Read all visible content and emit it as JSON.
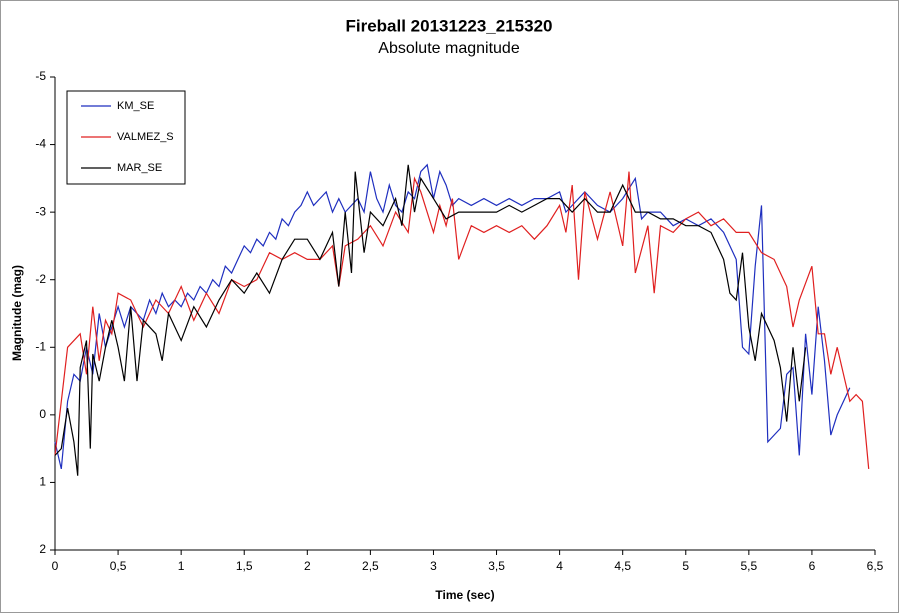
{
  "chart_data": {
    "type": "line",
    "title": "Fireball 20131223_215320",
    "subtitle": "Absolute magnitude",
    "x_label": "Time (sec)",
    "y_label": "Magnitude (mag)",
    "xlim": [
      0,
      6.5
    ],
    "xticks": [
      0,
      {
        "value": 0.5,
        "label": "0,5"
      },
      1,
      {
        "value": 1.5,
        "label": "1,5"
      },
      2,
      {
        "value": 2.5,
        "label": "2,5"
      },
      3,
      {
        "value": 3.5,
        "label": "3,5"
      },
      4,
      {
        "value": 4.5,
        "label": "4,5"
      },
      5,
      {
        "value": 5.5,
        "label": "5,5"
      },
      6,
      {
        "value": 6.5,
        "label": "6,5"
      }
    ],
    "ylim": [
      2,
      -5
    ],
    "yticks": [
      -5,
      -4,
      -3,
      -2,
      -1,
      0,
      1,
      2
    ],
    "legend": "top-left",
    "series": [
      {
        "name": "KM_SE",
        "color": "#1f2fbf",
        "x": [
          0,
          0.05,
          0.1,
          0.15,
          0.2,
          0.25,
          0.3,
          0.35,
          0.4,
          0.45,
          0.5,
          0.55,
          0.6,
          0.65,
          0.7,
          0.75,
          0.8,
          0.85,
          0.9,
          0.95,
          1.0,
          1.05,
          1.1,
          1.15,
          1.2,
          1.25,
          1.3,
          1.35,
          1.4,
          1.45,
          1.5,
          1.55,
          1.6,
          1.65,
          1.7,
          1.75,
          1.8,
          1.85,
          1.9,
          1.95,
          2.0,
          2.05,
          2.1,
          2.15,
          2.2,
          2.25,
          2.3,
          2.35,
          2.4,
          2.45,
          2.5,
          2.55,
          2.6,
          2.65,
          2.7,
          2.75,
          2.8,
          2.85,
          2.9,
          2.95,
          3.0,
          3.05,
          3.1,
          3.15,
          3.2,
          3.3,
          3.4,
          3.5,
          3.6,
          3.7,
          3.8,
          3.9,
          4.0,
          4.05,
          4.1,
          4.2,
          4.3,
          4.4,
          4.5,
          4.6,
          4.65,
          4.7,
          4.8,
          4.9,
          5.0,
          5.1,
          5.2,
          5.3,
          5.4,
          5.45,
          5.5,
          5.55,
          5.6,
          5.65,
          5.7,
          5.75,
          5.8,
          5.85,
          5.9,
          5.95,
          6.0,
          6.05,
          6.1,
          6.15,
          6.2,
          6.3
        ],
        "values": [
          0.4,
          0.8,
          -0.2,
          -0.6,
          -0.5,
          -1.0,
          -0.6,
          -1.5,
          -1.0,
          -1.3,
          -1.6,
          -1.3,
          -1.6,
          -1.5,
          -1.4,
          -1.7,
          -1.5,
          -1.8,
          -1.6,
          -1.7,
          -1.6,
          -1.8,
          -1.7,
          -1.9,
          -1.8,
          -2.0,
          -1.9,
          -2.2,
          -2.1,
          -2.3,
          -2.5,
          -2.4,
          -2.6,
          -2.5,
          -2.7,
          -2.6,
          -2.9,
          -2.8,
          -3.0,
          -3.1,
          -3.3,
          -3.1,
          -3.2,
          -3.3,
          -3.0,
          -3.2,
          -3.0,
          -3.1,
          -3.2,
          -3.0,
          -3.6,
          -3.2,
          -3.0,
          -3.4,
          -3.1,
          -3.0,
          -3.3,
          -3.2,
          -3.6,
          -3.7,
          -3.2,
          -3.6,
          -3.4,
          -3.1,
          -3.2,
          -3.1,
          -3.2,
          -3.1,
          -3.2,
          -3.1,
          -3.2,
          -3.2,
          -3.3,
          -3.0,
          -3.1,
          -3.3,
          -3.1,
          -3.0,
          -3.2,
          -3.5,
          -2.9,
          -3.0,
          -3.0,
          -2.8,
          -2.9,
          -2.8,
          -2.9,
          -2.7,
          -2.3,
          -1.0,
          -0.9,
          -2.2,
          -3.1,
          0.4,
          0.3,
          0.2,
          -0.6,
          -0.7,
          0.6,
          -1.2,
          -0.3,
          -1.6,
          -0.8,
          0.3,
          0.0,
          -0.4
        ]
      },
      {
        "name": "VALMEZ_S",
        "color": "#e02020",
        "x": [
          0,
          0.1,
          0.2,
          0.25,
          0.3,
          0.35,
          0.4,
          0.45,
          0.5,
          0.6,
          0.7,
          0.8,
          0.9,
          1.0,
          1.1,
          1.2,
          1.3,
          1.4,
          1.5,
          1.6,
          1.7,
          1.8,
          1.9,
          2.0,
          2.1,
          2.2,
          2.25,
          2.3,
          2.4,
          2.5,
          2.6,
          2.7,
          2.8,
          2.85,
          2.9,
          3.0,
          3.05,
          3.1,
          3.15,
          3.2,
          3.3,
          3.4,
          3.5,
          3.6,
          3.7,
          3.8,
          3.9,
          4.0,
          4.05,
          4.1,
          4.15,
          4.2,
          4.3,
          4.4,
          4.5,
          4.55,
          4.6,
          4.7,
          4.75,
          4.8,
          4.9,
          5.0,
          5.1,
          5.2,
          5.3,
          5.4,
          5.5,
          5.6,
          5.7,
          5.8,
          5.85,
          5.9,
          6.0,
          6.05,
          6.1,
          6.15,
          6.2,
          6.3,
          6.35,
          6.4,
          6.45
        ],
        "values": [
          0.6,
          -1.0,
          -1.2,
          -0.6,
          -1.6,
          -0.8,
          -1.4,
          -1.2,
          -1.8,
          -1.7,
          -1.3,
          -1.7,
          -1.5,
          -1.9,
          -1.4,
          -1.8,
          -1.5,
          -2.0,
          -1.9,
          -2.0,
          -2.4,
          -2.3,
          -2.4,
          -2.3,
          -2.3,
          -2.5,
          -1.9,
          -2.5,
          -2.6,
          -2.8,
          -2.5,
          -3.0,
          -2.7,
          -3.5,
          -3.3,
          -2.7,
          -3.1,
          -2.8,
          -3.2,
          -2.3,
          -2.8,
          -2.7,
          -2.8,
          -2.7,
          -2.8,
          -2.6,
          -2.8,
          -3.1,
          -2.7,
          -3.4,
          -2.0,
          -3.3,
          -2.6,
          -3.3,
          -2.5,
          -3.6,
          -2.1,
          -2.8,
          -1.8,
          -2.8,
          -2.7,
          -2.9,
          -3.0,
          -2.8,
          -2.9,
          -2.7,
          -2.7,
          -2.4,
          -2.3,
          -1.9,
          -1.3,
          -1.7,
          -2.2,
          -1.2,
          -1.2,
          -0.6,
          -1.0,
          -0.2,
          -0.3,
          -0.2,
          0.8
        ]
      },
      {
        "name": "MAR_SE",
        "color": "#000000",
        "x": [
          0,
          0.05,
          0.1,
          0.15,
          0.18,
          0.2,
          0.25,
          0.28,
          0.3,
          0.35,
          0.4,
          0.45,
          0.5,
          0.55,
          0.6,
          0.65,
          0.7,
          0.8,
          0.85,
          0.9,
          1.0,
          1.1,
          1.2,
          1.3,
          1.4,
          1.5,
          1.6,
          1.7,
          1.8,
          1.9,
          2.0,
          2.1,
          2.2,
          2.25,
          2.3,
          2.35,
          2.38,
          2.45,
          2.5,
          2.6,
          2.7,
          2.75,
          2.8,
          2.85,
          2.9,
          3.0,
          3.1,
          3.2,
          3.3,
          3.4,
          3.5,
          3.6,
          3.7,
          3.8,
          3.9,
          4.0,
          4.1,
          4.2,
          4.3,
          4.4,
          4.5,
          4.6,
          4.7,
          4.8,
          4.9,
          5.0,
          5.1,
          5.2,
          5.3,
          5.35,
          5.4,
          5.45,
          5.5,
          5.55,
          5.6,
          5.7,
          5.75,
          5.8,
          5.85,
          5.9,
          5.95
        ],
        "values": [
          0.6,
          0.5,
          -0.1,
          0.4,
          0.9,
          -0.7,
          -1.1,
          0.5,
          -0.9,
          -0.5,
          -1.0,
          -1.4,
          -1.0,
          -0.5,
          -1.6,
          -0.5,
          -1.4,
          -1.2,
          -0.8,
          -1.5,
          -1.1,
          -1.6,
          -1.3,
          -1.7,
          -2.0,
          -1.8,
          -2.1,
          -1.8,
          -2.3,
          -2.6,
          -2.6,
          -2.3,
          -2.7,
          -1.9,
          -3.0,
          -2.1,
          -3.6,
          -2.4,
          -3.0,
          -2.8,
          -3.2,
          -2.8,
          -3.7,
          -3.0,
          -3.5,
          -3.2,
          -2.9,
          -3.0,
          -3.0,
          -3.0,
          -3.0,
          -3.1,
          -3.0,
          -3.1,
          -3.2,
          -3.2,
          -3.0,
          -3.2,
          -3.0,
          -3.0,
          -3.4,
          -3.0,
          -3.0,
          -2.9,
          -2.9,
          -2.8,
          -2.8,
          -2.7,
          -2.3,
          -1.8,
          -1.7,
          -2.4,
          -1.3,
          -0.8,
          -1.5,
          -1.1,
          -0.7,
          0.1,
          -1.0,
          -0.2,
          -1.0
        ]
      }
    ]
  }
}
